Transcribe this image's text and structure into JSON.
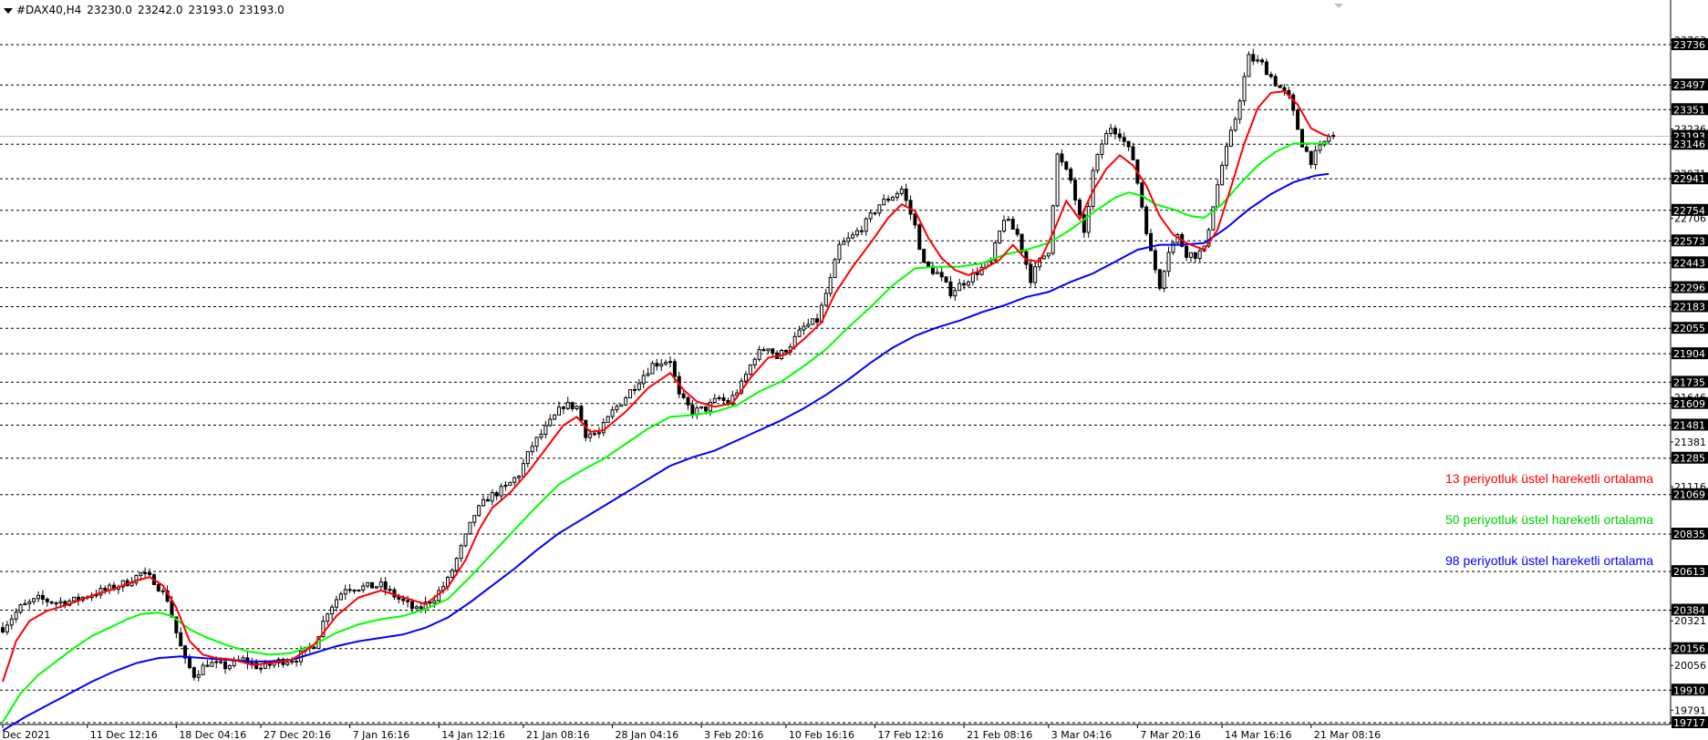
{
  "header": {
    "symbol": "#DAX40,H4",
    "ohlc": [
      "23230.0",
      "23242.0",
      "23193.0",
      "23193.0"
    ]
  },
  "colors": {
    "background": "#ffffff",
    "grid": "#000000",
    "candle": "#000000",
    "ema13": "#ff0000",
    "ema50": "#00ff00",
    "ema98": "#0000ff",
    "price_line": "#c0c0c0",
    "label_bg": "#000000",
    "label_fg": "#ffffff"
  },
  "legend": [
    {
      "text": "13 periyotluk üstel hareketli ortalama",
      "color": "#ff0000"
    },
    {
      "text": "50 periyotluk üstel hareketli ortalama",
      "color": "#00d000"
    },
    {
      "text": "98 periyotluk üstel hareketli ortalama",
      "color": "#0000ff"
    }
  ],
  "chart_data": {
    "type": "candlestick",
    "timeframe": "H4",
    "ylim": [
      19717,
      23763
    ],
    "current_price": 23193,
    "grid_levels": [
      23736,
      23497,
      23351,
      23146,
      22941,
      22754,
      22573,
      22443,
      22296,
      22183,
      22055,
      21904,
      21735,
      21609,
      21481,
      21285,
      21069,
      20835,
      20613,
      20384,
      20156,
      19910,
      19717
    ],
    "axis_labels": [
      {
        "value": 23763,
        "text": "23763",
        "marked": false
      },
      {
        "value": 23736,
        "text": "23736",
        "marked": true
      },
      {
        "value": 23497,
        "text": "23497",
        "marked": true
      },
      {
        "value": 23351,
        "text": "23351",
        "marked": true
      },
      {
        "value": 23236,
        "text": "23236",
        "marked": false
      },
      {
        "value": 23193,
        "text": "23193",
        "marked": true
      },
      {
        "value": 23146,
        "text": "23146",
        "marked": true
      },
      {
        "value": 22971,
        "text": "22971",
        "marked": false
      },
      {
        "value": 22941,
        "text": "22941",
        "marked": true
      },
      {
        "value": 22754,
        "text": "22754",
        "marked": true
      },
      {
        "value": 22706,
        "text": "22706",
        "marked": false
      },
      {
        "value": 22573,
        "text": "22573",
        "marked": true
      },
      {
        "value": 22443,
        "text": "22443",
        "marked": true
      },
      {
        "value": 22296,
        "text": "22296",
        "marked": true
      },
      {
        "value": 22183,
        "text": "22183",
        "marked": true
      },
      {
        "value": 22055,
        "text": "22055",
        "marked": true
      },
      {
        "value": 21904,
        "text": "21904",
        "marked": true
      },
      {
        "value": 21735,
        "text": "21735",
        "marked": true
      },
      {
        "value": 21646,
        "text": "21646",
        "marked": false
      },
      {
        "value": 21609,
        "text": "21609",
        "marked": true
      },
      {
        "value": 21481,
        "text": "21481",
        "marked": true
      },
      {
        "value": 21381,
        "text": "21381",
        "marked": false
      },
      {
        "value": 21285,
        "text": "21285",
        "marked": true
      },
      {
        "value": 21116,
        "text": "21116",
        "marked": false
      },
      {
        "value": 21069,
        "text": "21069",
        "marked": true
      },
      {
        "value": 20835,
        "text": "20835",
        "marked": true
      },
      {
        "value": 20613,
        "text": "20613",
        "marked": true
      },
      {
        "value": 20384,
        "text": "20384",
        "marked": true
      },
      {
        "value": 20321,
        "text": "20321",
        "marked": false
      },
      {
        "value": 20156,
        "text": "20156",
        "marked": true
      },
      {
        "value": 20056,
        "text": "20056",
        "marked": false
      },
      {
        "value": 19910,
        "text": "19910",
        "marked": true
      },
      {
        "value": 19791,
        "text": "19791",
        "marked": false
      },
      {
        "value": 19717,
        "text": "19717",
        "marked": true
      }
    ],
    "x_labels": [
      {
        "bar": 0,
        "text": "4 Dec 2021"
      },
      {
        "bar": 19,
        "text": "11 Dec 12:16"
      },
      {
        "bar": 39,
        "text": "18 Dec 04:16"
      },
      {
        "bar": 58,
        "text": "27 Dec 20:16"
      },
      {
        "bar": 78,
        "text": "7 Jan 16:16"
      },
      {
        "bar": 98,
        "text": "14 Jan 12:16"
      },
      {
        "bar": 117,
        "text": "21 Jan 08:16"
      },
      {
        "bar": 137,
        "text": "28 Jan 04:16"
      },
      {
        "bar": 157,
        "text": "3 Feb 20:16"
      },
      {
        "bar": 176,
        "text": "10 Feb 16:16"
      },
      {
        "bar": 196,
        "text": "17 Feb 12:16"
      },
      {
        "bar": 216,
        "text": "21 Feb 08:16"
      },
      {
        "bar": 235,
        "text": "3 Mar 04:16"
      },
      {
        "bar": 255,
        "text": "7 Mar 20:16"
      },
      {
        "bar": 274,
        "text": "14 Mar 16:16"
      },
      {
        "bar": 294,
        "text": "21 Mar 08:16"
      }
    ],
    "bar_count": 300,
    "close_anchors": [
      [
        0,
        20280
      ],
      [
        4,
        20400
      ],
      [
        8,
        20450
      ],
      [
        12,
        20430
      ],
      [
        16,
        20440
      ],
      [
        20,
        20480
      ],
      [
        24,
        20510
      ],
      [
        28,
        20550
      ],
      [
        31,
        20600
      ],
      [
        34,
        20560
      ],
      [
        37,
        20450
      ],
      [
        39,
        20250
      ],
      [
        41,
        20080
      ],
      [
        43,
        20000
      ],
      [
        46,
        20070
      ],
      [
        50,
        20050
      ],
      [
        54,
        20090
      ],
      [
        58,
        20040
      ],
      [
        62,
        20080
      ],
      [
        66,
        20100
      ],
      [
        70,
        20180
      ],
      [
        73,
        20380
      ],
      [
        77,
        20520
      ],
      [
        81,
        20520
      ],
      [
        85,
        20530
      ],
      [
        89,
        20450
      ],
      [
        93,
        20380
      ],
      [
        97,
        20460
      ],
      [
        100,
        20560
      ],
      [
        103,
        20750
      ],
      [
        106,
        20950
      ],
      [
        109,
        21050
      ],
      [
        113,
        21110
      ],
      [
        116,
        21190
      ],
      [
        119,
        21360
      ],
      [
        122,
        21460
      ],
      [
        126,
        21600
      ],
      [
        129,
        21590
      ],
      [
        131,
        21430
      ],
      [
        134,
        21430
      ],
      [
        137,
        21560
      ],
      [
        140,
        21650
      ],
      [
        143,
        21750
      ],
      [
        146,
        21840
      ],
      [
        150,
        21870
      ],
      [
        152,
        21650
      ],
      [
        155,
        21560
      ],
      [
        158,
        21580
      ],
      [
        161,
        21640
      ],
      [
        163,
        21610
      ],
      [
        166,
        21720
      ],
      [
        169,
        21890
      ],
      [
        172,
        21950
      ],
      [
        174,
        21880
      ],
      [
        177,
        21960
      ],
      [
        180,
        22060
      ],
      [
        183,
        22100
      ],
      [
        186,
        22340
      ],
      [
        188,
        22540
      ],
      [
        191,
        22600
      ],
      [
        194,
        22680
      ],
      [
        197,
        22790
      ],
      [
        200,
        22840
      ],
      [
        202,
        22880
      ],
      [
        205,
        22660
      ],
      [
        207,
        22430
      ],
      [
        210,
        22380
      ],
      [
        213,
        22270
      ],
      [
        216,
        22330
      ],
      [
        219,
        22390
      ],
      [
        222,
        22450
      ],
      [
        225,
        22710
      ],
      [
        228,
        22610
      ],
      [
        231,
        22350
      ],
      [
        233,
        22450
      ],
      [
        235,
        22520
      ],
      [
        237,
        23080
      ],
      [
        240,
        22930
      ],
      [
        243,
        22600
      ],
      [
        245,
        22980
      ],
      [
        247,
        23150
      ],
      [
        249,
        23250
      ],
      [
        251,
        23210
      ],
      [
        254,
        23060
      ],
      [
        256,
        22780
      ],
      [
        258,
        22500
      ],
      [
        260,
        22310
      ],
      [
        262,
        22520
      ],
      [
        264,
        22600
      ],
      [
        266,
        22500
      ],
      [
        268,
        22490
      ],
      [
        270,
        22520
      ],
      [
        272,
        22790
      ],
      [
        274,
        23020
      ],
      [
        277,
        23300
      ],
      [
        280,
        23660
      ],
      [
        283,
        23620
      ],
      [
        286,
        23510
      ],
      [
        289,
        23420
      ],
      [
        292,
        23150
      ],
      [
        294,
        23050
      ],
      [
        296,
        23120
      ],
      [
        298,
        23193
      ]
    ],
    "ema13": [
      [
        0,
        19960
      ],
      [
        3,
        20200
      ],
      [
        6,
        20320
      ],
      [
        10,
        20380
      ],
      [
        15,
        20420
      ],
      [
        20,
        20470
      ],
      [
        25,
        20510
      ],
      [
        30,
        20560
      ],
      [
        33,
        20580
      ],
      [
        36,
        20530
      ],
      [
        39,
        20400
      ],
      [
        42,
        20200
      ],
      [
        45,
        20120
      ],
      [
        48,
        20100
      ],
      [
        52,
        20090
      ],
      [
        56,
        20060
      ],
      [
        60,
        20070
      ],
      [
        65,
        20090
      ],
      [
        70,
        20180
      ],
      [
        75,
        20350
      ],
      [
        80,
        20460
      ],
      [
        85,
        20500
      ],
      [
        90,
        20460
      ],
      [
        95,
        20420
      ],
      [
        100,
        20520
      ],
      [
        104,
        20680
      ],
      [
        107,
        20860
      ],
      [
        110,
        20990
      ],
      [
        114,
        21080
      ],
      [
        118,
        21200
      ],
      [
        122,
        21340
      ],
      [
        126,
        21480
      ],
      [
        129,
        21530
      ],
      [
        132,
        21440
      ],
      [
        135,
        21450
      ],
      [
        140,
        21560
      ],
      [
        145,
        21700
      ],
      [
        150,
        21790
      ],
      [
        153,
        21690
      ],
      [
        156,
        21620
      ],
      [
        160,
        21590
      ],
      [
        164,
        21610
      ],
      [
        168,
        21760
      ],
      [
        172,
        21880
      ],
      [
        176,
        21900
      ],
      [
        180,
        21990
      ],
      [
        184,
        22090
      ],
      [
        187,
        22260
      ],
      [
        191,
        22420
      ],
      [
        195,
        22560
      ],
      [
        199,
        22710
      ],
      [
        202,
        22790
      ],
      [
        205,
        22750
      ],
      [
        208,
        22590
      ],
      [
        211,
        22470
      ],
      [
        214,
        22400
      ],
      [
        217,
        22370
      ],
      [
        220,
        22400
      ],
      [
        224,
        22460
      ],
      [
        227,
        22550
      ],
      [
        230,
        22460
      ],
      [
        233,
        22450
      ],
      [
        236,
        22620
      ],
      [
        239,
        22810
      ],
      [
        242,
        22700
      ],
      [
        245,
        22870
      ],
      [
        248,
        23000
      ],
      [
        251,
        23080
      ],
      [
        254,
        23020
      ],
      [
        257,
        22900
      ],
      [
        260,
        22720
      ],
      [
        263,
        22610
      ],
      [
        266,
        22560
      ],
      [
        270,
        22520
      ],
      [
        273,
        22640
      ],
      [
        276,
        22890
      ],
      [
        279,
        23150
      ],
      [
        282,
        23360
      ],
      [
        285,
        23450
      ],
      [
        288,
        23460
      ],
      [
        291,
        23380
      ],
      [
        294,
        23240
      ],
      [
        297,
        23200
      ],
      [
        298,
        23195
      ]
    ],
    "ema50": [
      [
        0,
        19720
      ],
      [
        4,
        19890
      ],
      [
        8,
        20000
      ],
      [
        12,
        20080
      ],
      [
        16,
        20160
      ],
      [
        20,
        20230
      ],
      [
        24,
        20280
      ],
      [
        28,
        20330
      ],
      [
        31,
        20360
      ],
      [
        35,
        20370
      ],
      [
        38,
        20350
      ],
      [
        42,
        20270
      ],
      [
        46,
        20220
      ],
      [
        50,
        20180
      ],
      [
        55,
        20140
      ],
      [
        60,
        20120
      ],
      [
        65,
        20130
      ],
      [
        70,
        20180
      ],
      [
        75,
        20250
      ],
      [
        80,
        20300
      ],
      [
        85,
        20330
      ],
      [
        90,
        20350
      ],
      [
        95,
        20390
      ],
      [
        100,
        20450
      ],
      [
        105,
        20580
      ],
      [
        110,
        20720
      ],
      [
        115,
        20860
      ],
      [
        120,
        21000
      ],
      [
        125,
        21130
      ],
      [
        130,
        21210
      ],
      [
        135,
        21280
      ],
      [
        140,
        21370
      ],
      [
        145,
        21460
      ],
      [
        150,
        21530
      ],
      [
        155,
        21540
      ],
      [
        160,
        21560
      ],
      [
        165,
        21600
      ],
      [
        170,
        21680
      ],
      [
        175,
        21740
      ],
      [
        180,
        21830
      ],
      [
        185,
        21930
      ],
      [
        190,
        22060
      ],
      [
        195,
        22180
      ],
      [
        200,
        22310
      ],
      [
        205,
        22410
      ],
      [
        210,
        22420
      ],
      [
        215,
        22420
      ],
      [
        220,
        22440
      ],
      [
        225,
        22490
      ],
      [
        230,
        22520
      ],
      [
        235,
        22560
      ],
      [
        240,
        22640
      ],
      [
        245,
        22740
      ],
      [
        250,
        22830
      ],
      [
        253,
        22860
      ],
      [
        256,
        22840
      ],
      [
        259,
        22790
      ],
      [
        263,
        22760
      ],
      [
        267,
        22720
      ],
      [
        270,
        22710
      ],
      [
        274,
        22790
      ],
      [
        278,
        22910
      ],
      [
        282,
        23020
      ],
      [
        286,
        23100
      ],
      [
        290,
        23150
      ],
      [
        294,
        23150
      ],
      [
        298,
        23150
      ]
    ],
    "ema98": [
      [
        0,
        19670
      ],
      [
        5,
        19750
      ],
      [
        10,
        19820
      ],
      [
        15,
        19890
      ],
      [
        20,
        19960
      ],
      [
        25,
        20020
      ],
      [
        30,
        20070
      ],
      [
        35,
        20100
      ],
      [
        40,
        20110
      ],
      [
        45,
        20100
      ],
      [
        50,
        20090
      ],
      [
        55,
        20080
      ],
      [
        60,
        20080
      ],
      [
        65,
        20090
      ],
      [
        70,
        20130
      ],
      [
        75,
        20170
      ],
      [
        80,
        20200
      ],
      [
        85,
        20220
      ],
      [
        90,
        20240
      ],
      [
        95,
        20280
      ],
      [
        100,
        20340
      ],
      [
        105,
        20430
      ],
      [
        110,
        20530
      ],
      [
        115,
        20630
      ],
      [
        120,
        20740
      ],
      [
        125,
        20840
      ],
      [
        130,
        20920
      ],
      [
        135,
        21000
      ],
      [
        140,
        21080
      ],
      [
        145,
        21160
      ],
      [
        150,
        21240
      ],
      [
        155,
        21290
      ],
      [
        160,
        21330
      ],
      [
        165,
        21390
      ],
      [
        170,
        21450
      ],
      [
        175,
        21510
      ],
      [
        180,
        21580
      ],
      [
        185,
        21660
      ],
      [
        190,
        21750
      ],
      [
        195,
        21850
      ],
      [
        200,
        21940
      ],
      [
        205,
        22010
      ],
      [
        210,
        22060
      ],
      [
        215,
        22100
      ],
      [
        220,
        22150
      ],
      [
        225,
        22190
      ],
      [
        230,
        22240
      ],
      [
        235,
        22270
      ],
      [
        240,
        22330
      ],
      [
        245,
        22380
      ],
      [
        250,
        22450
      ],
      [
        255,
        22520
      ],
      [
        260,
        22550
      ],
      [
        265,
        22550
      ],
      [
        270,
        22560
      ],
      [
        275,
        22650
      ],
      [
        280,
        22760
      ],
      [
        285,
        22850
      ],
      [
        290,
        22920
      ],
      [
        295,
        22960
      ],
      [
        298,
        22970
      ]
    ]
  }
}
